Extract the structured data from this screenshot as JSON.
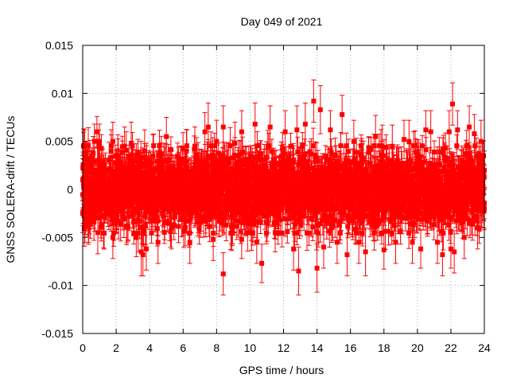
{
  "chart_data": {
    "type": "scatter",
    "title": "Day 049 of 2021",
    "xlabel": "GPS time / hours",
    "ylabel": "GNSS SOLERA-drift / TECUs",
    "xlim": [
      0,
      24
    ],
    "ylim": [
      -0.015,
      0.015
    ],
    "xticks": [
      0,
      2,
      4,
      6,
      8,
      10,
      12,
      14,
      16,
      18,
      20,
      22,
      24
    ],
    "yticks": [
      -0.015,
      -0.01,
      -0.005,
      0,
      0.005,
      0.01,
      0.015
    ],
    "ytick_labels": [
      "-0.015",
      "-0.01",
      "-0.005",
      "0",
      "0.005",
      "0.01",
      "0.015"
    ],
    "grid": true,
    "series_color": "#ff0000",
    "marker": "square",
    "error_bars": true,
    "series": [
      {
        "points": [
          [
            0.0,
            0.001,
            0.0022
          ],
          [
            0.0,
            -0.0025,
            0.002
          ],
          [
            0.05,
            0.0045,
            0.0018
          ],
          [
            0.3,
            0.002,
            0.0022
          ],
          [
            0.35,
            -0.0035,
            0.002
          ],
          [
            0.7,
            0.005,
            0.0018
          ],
          [
            0.85,
            0.006,
            0.0016
          ],
          [
            0.9,
            -0.0045,
            0.0022
          ],
          [
            1.0,
            0.005,
            0.0018
          ],
          [
            1.7,
            0.004,
            0.0022
          ],
          [
            1.8,
            -0.005,
            0.0022
          ],
          [
            1.8,
            0.005,
            0.002
          ],
          [
            2.1,
            0.0035,
            0.0022
          ],
          [
            2.5,
            0.0045,
            0.002
          ],
          [
            2.9,
            0.0048,
            0.0022
          ],
          [
            3.2,
            -0.005,
            0.002
          ],
          [
            3.5,
            -0.0065,
            0.0025
          ],
          [
            3.6,
            -0.0068,
            0.0022
          ],
          [
            3.7,
            0.004,
            0.0022
          ],
          [
            3.8,
            -0.0062,
            0.0022
          ],
          [
            4.2,
            0.0035,
            0.0022
          ],
          [
            4.5,
            -0.0055,
            0.0022
          ],
          [
            5.0,
            0.0055,
            0.002
          ],
          [
            5.3,
            -0.004,
            0.0022
          ],
          [
            6.2,
            0.004,
            0.0022
          ],
          [
            6.4,
            -0.0055,
            0.0022
          ],
          [
            6.7,
            0.0045,
            0.002
          ],
          [
            7.3,
            0.006,
            0.002
          ],
          [
            7.5,
            0.0065,
            0.0025
          ],
          [
            7.8,
            -0.0052,
            0.0022
          ],
          [
            8.0,
            0.005,
            0.0022
          ],
          [
            8.4,
            0.0065,
            0.0022
          ],
          [
            8.4,
            -0.0088,
            0.0022
          ],
          [
            9.1,
            0.0048,
            0.0022
          ],
          [
            9.5,
            -0.0052,
            0.002
          ],
          [
            9.5,
            0.006,
            0.0022
          ],
          [
            10.3,
            0.0068,
            0.0022
          ],
          [
            10.4,
            -0.0055,
            0.0022
          ],
          [
            10.7,
            -0.0077,
            0.002
          ],
          [
            11.2,
            0.0065,
            0.0022
          ],
          [
            11.5,
            -0.0045,
            0.002
          ],
          [
            12.1,
            0.006,
            0.0022
          ],
          [
            12.6,
            -0.0062,
            0.0022
          ],
          [
            12.8,
            0.0062,
            0.0025
          ],
          [
            12.9,
            -0.0085,
            0.0025
          ],
          [
            13.3,
            0.0068,
            0.0022
          ],
          [
            13.8,
            0.0092,
            0.0022
          ],
          [
            14.0,
            -0.0082,
            0.0025
          ],
          [
            14.2,
            0.0083,
            0.0025
          ],
          [
            14.4,
            -0.006,
            0.0022
          ],
          [
            14.8,
            0.0062,
            0.002
          ],
          [
            15.2,
            -0.0055,
            0.0022
          ],
          [
            15.5,
            0.0078,
            0.002
          ],
          [
            15.8,
            -0.0068,
            0.0022
          ],
          [
            16.2,
            0.005,
            0.0022
          ],
          [
            16.5,
            -0.0055,
            0.0022
          ],
          [
            16.9,
            -0.0065,
            0.0025
          ],
          [
            17.5,
            0.0055,
            0.0022
          ],
          [
            17.9,
            0.0045,
            0.0022
          ],
          [
            18.0,
            -0.0063,
            0.002
          ],
          [
            18.5,
            0.0045,
            0.0022
          ],
          [
            18.7,
            -0.0055,
            0.0022
          ],
          [
            19.2,
            0.0052,
            0.002
          ],
          [
            19.5,
            0.005,
            0.0022
          ],
          [
            19.7,
            -0.0055,
            0.0022
          ],
          [
            20.2,
            -0.0062,
            0.002
          ],
          [
            20.5,
            0.0062,
            0.002
          ],
          [
            20.8,
            0.006,
            0.0022
          ],
          [
            21.2,
            -0.0055,
            0.0022
          ],
          [
            21.5,
            -0.0068,
            0.0022
          ],
          [
            21.9,
            0.006,
            0.0022
          ],
          [
            22.0,
            -0.0062,
            0.002
          ],
          [
            22.1,
            0.0089,
            0.0022
          ],
          [
            22.2,
            -0.0065,
            0.0022
          ],
          [
            22.4,
            0.0062,
            0.002
          ],
          [
            22.8,
            -0.005,
            0.0022
          ],
          [
            23.1,
            0.0065,
            0.0022
          ],
          [
            23.4,
            0.0058,
            0.002
          ],
          [
            23.6,
            -0.004,
            0.0022
          ],
          [
            23.8,
            0.005,
            0.0022
          ],
          [
            24.0,
            -0.002,
            0.0022
          ],
          [
            24.0,
            0.002,
            0.002
          ]
        ],
        "dense_band": {
          "x_start": 0,
          "x_end": 24,
          "count": 2880,
          "y_typical_range": [
            -0.0035,
            0.0035
          ],
          "error_typical": 0.0015
        }
      }
    ]
  }
}
